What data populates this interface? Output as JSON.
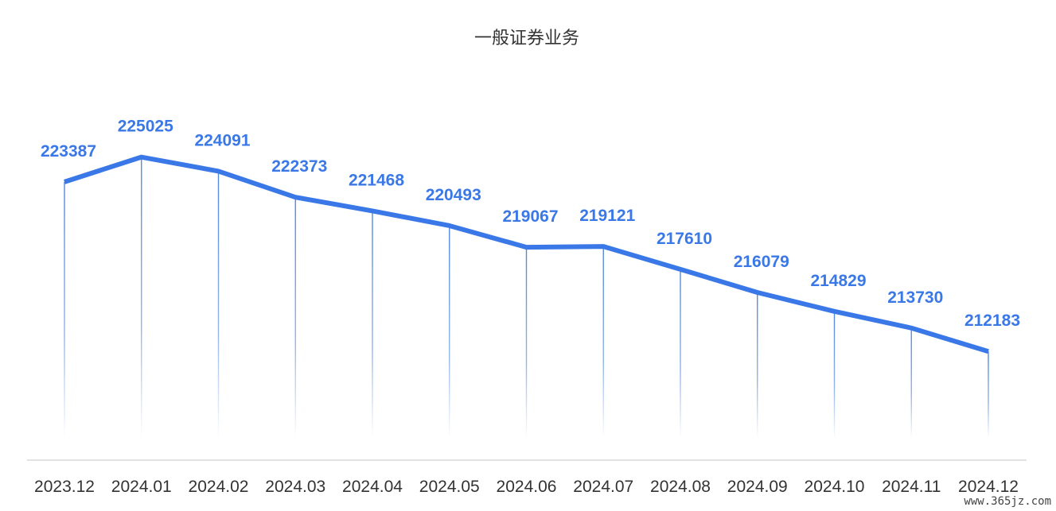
{
  "chart_data": {
    "type": "line",
    "title": "一般证券业务",
    "categories": [
      "2023.12",
      "2024.01",
      "2024.02",
      "2024.03",
      "2024.04",
      "2024.05",
      "2024.06",
      "2024.07",
      "2024.08",
      "2024.09",
      "2024.10",
      "2024.11",
      "2024.12"
    ],
    "series": [
      {
        "values": [
          223387,
          225025,
          224091,
          222373,
          221468,
          220493,
          219067,
          219121,
          217610,
          216079,
          214829,
          213730,
          212183
        ]
      }
    ],
    "data_labels": [
      "223387",
      "225025",
      "224091",
      "222373",
      "221468",
      "220493",
      "219067",
      "219121",
      "217610",
      "216079",
      "214829",
      "213730",
      "212183"
    ],
    "ylim": [
      205000,
      228000
    ],
    "grid": false,
    "drop_lines": true,
    "colors": {
      "line": "#3b78e7",
      "label": "#3b78e7",
      "drop_line": "#4a80d8",
      "axis": "#d9d9d9"
    }
  },
  "watermark": "www.365jz.com"
}
